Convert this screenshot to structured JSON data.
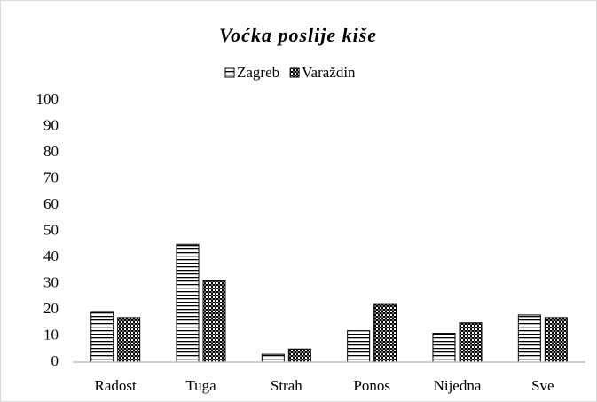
{
  "chart_data": {
    "type": "bar",
    "title": "Voćka poslije kiše",
    "categories": [
      "Radost",
      "Tuga",
      "Strah",
      "Ponos",
      "Nijedna",
      "Sve"
    ],
    "series": [
      {
        "name": "Zagreb",
        "color": "#000000",
        "pattern": "horizontal",
        "values": [
          19,
          45,
          3,
          12,
          11,
          18
        ]
      },
      {
        "name": "Varaždin",
        "color": "#000000",
        "pattern": "checker",
        "values": [
          17,
          31,
          5,
          22,
          15,
          17
        ]
      }
    ],
    "ylim": [
      0,
      100
    ],
    "yticks": [
      0,
      10,
      20,
      30,
      40,
      50,
      60,
      70,
      80,
      90,
      100
    ],
    "grid": false,
    "legend": "top"
  }
}
